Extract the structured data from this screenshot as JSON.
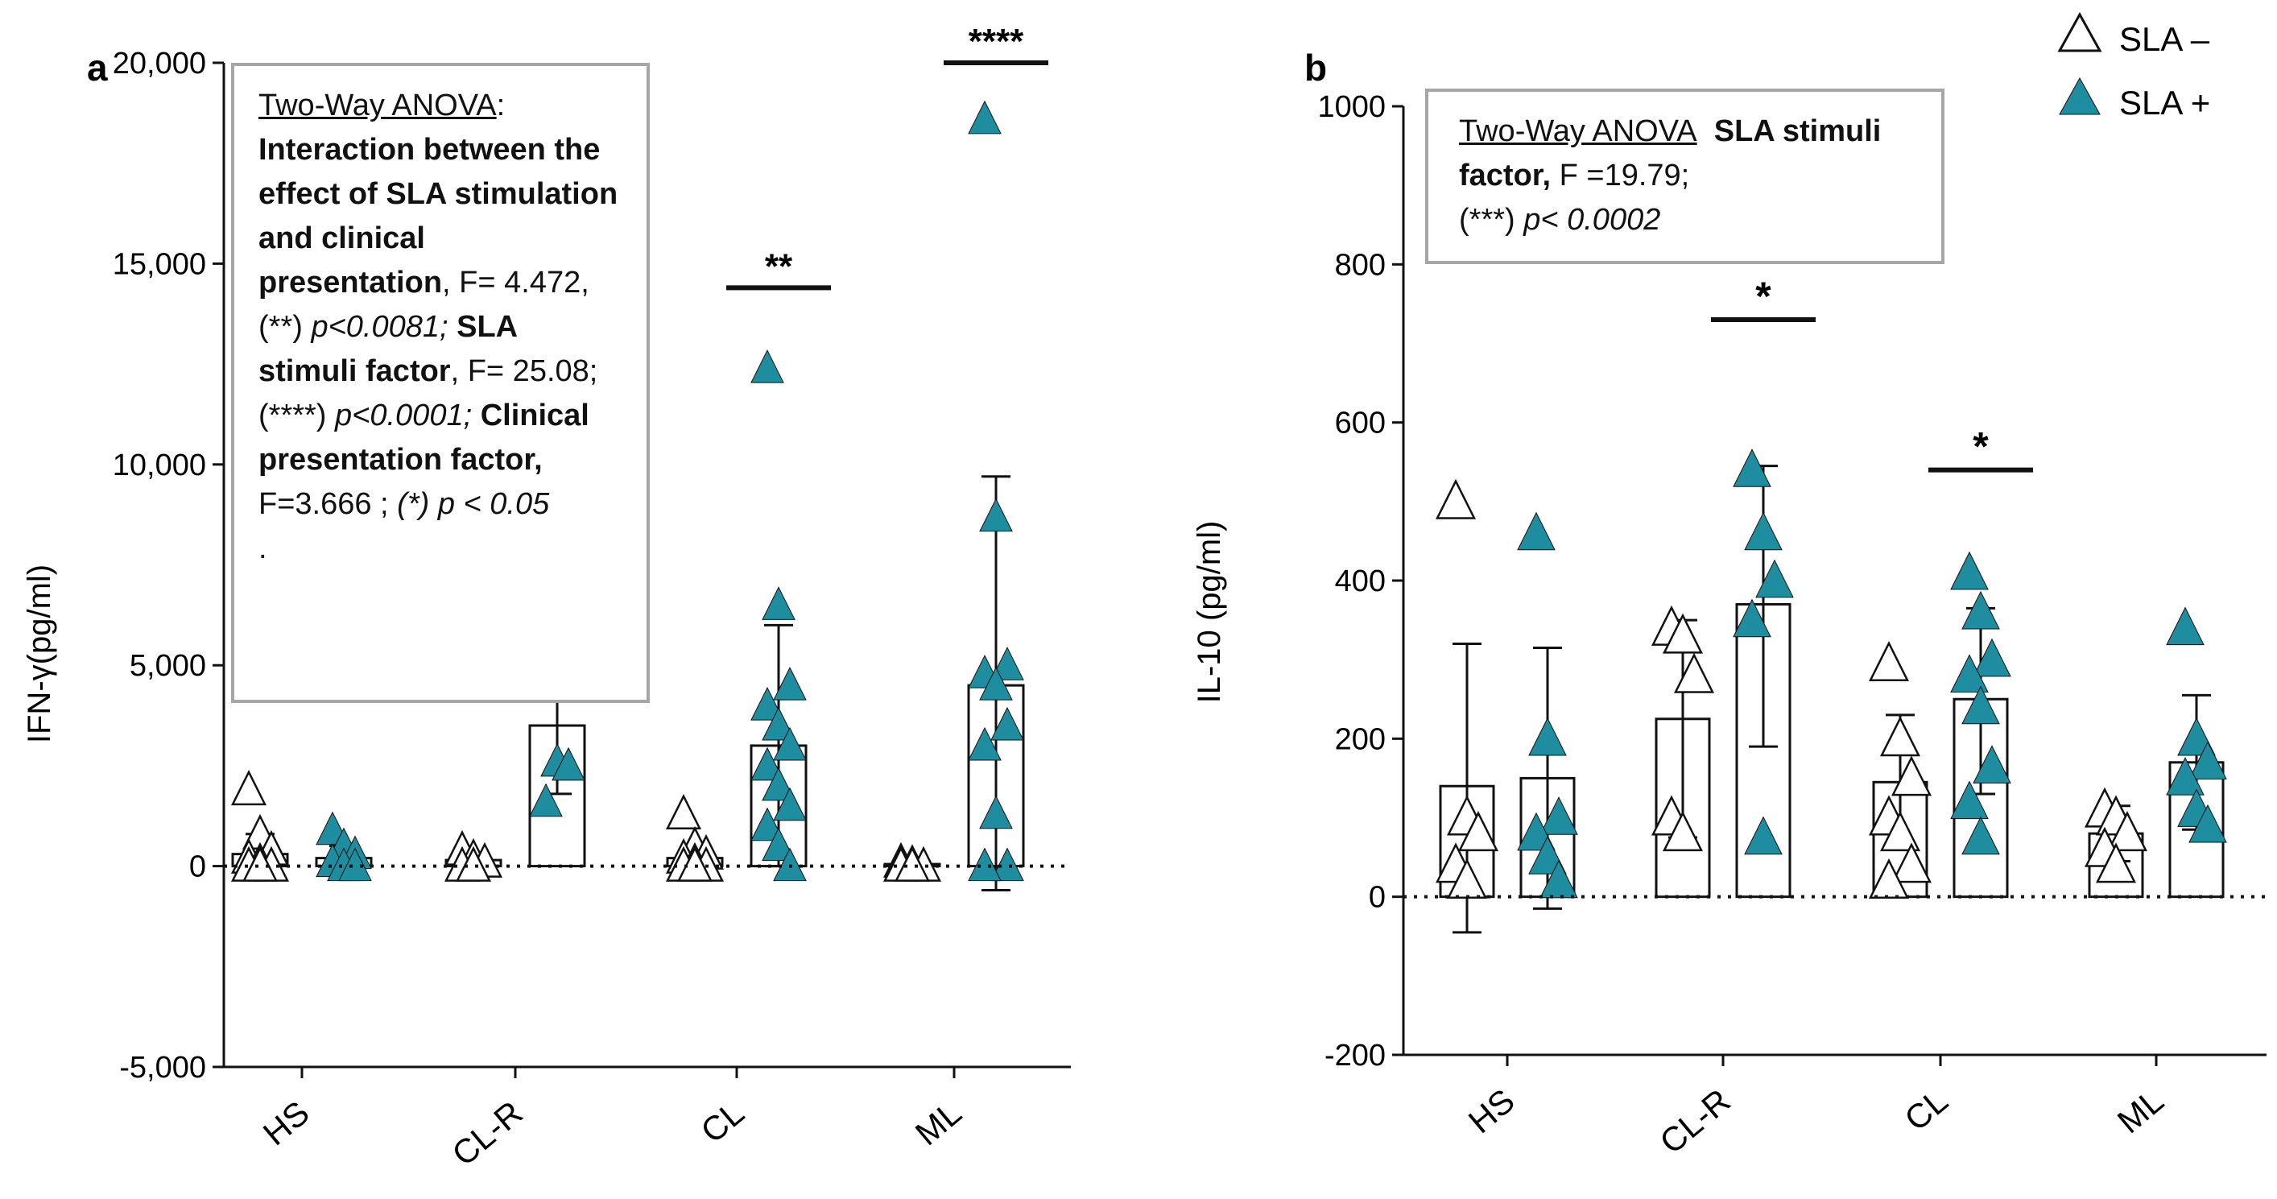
{
  "colors": {
    "sla_minus_fill": "#ffffff",
    "sla_plus_fill": "#1f8da0",
    "bar_stroke": "#111111",
    "box_border": "#a6a6a6"
  },
  "legend": {
    "items": [
      {
        "label": "SLA –",
        "marker": "open-triangle"
      },
      {
        "label": "SLA +",
        "marker": "filled-triangle"
      }
    ],
    "placement": "top-right"
  },
  "chart_data": [
    {
      "type": "bar",
      "panel_label": "a",
      "title": "",
      "xlabel": "",
      "ylabel": "IFN-γ(pg/ml)",
      "ylim": [
        -5000,
        20000
      ],
      "yticks": [
        -5000,
        0,
        5000,
        10000,
        15000,
        20000
      ],
      "ytick_labels": [
        "-5,000",
        "0",
        "5,000",
        "10,000",
        "15,000",
        "20,000"
      ],
      "categories": [
        "HS",
        "CL-R",
        "CL",
        "ML"
      ],
      "baseline": 0,
      "series": [
        {
          "name": "SLA –",
          "means": [
            300,
            150,
            200,
            50
          ],
          "err_low": [
            -200,
            0,
            0,
            0
          ],
          "err_high": [
            800,
            300,
            500,
            100
          ],
          "points": [
            [
              1900,
              800,
              400,
              200,
              100,
              0,
              0,
              0
            ],
            [
              400,
              200,
              100,
              0,
              0
            ],
            [
              1300,
              500,
              300,
              200,
              100,
              0,
              0,
              0
            ],
            [
              100,
              50,
              0,
              0,
              0
            ]
          ]
        },
        {
          "name": "SLA +",
          "means": [
            200,
            3500,
            3000,
            4500
          ],
          "err_low": [
            0,
            1800,
            0,
            -600
          ],
          "err_high": [
            500,
            5200,
            6000,
            9700
          ],
          "points": [
            [
              900,
              500,
              300,
              100,
              0,
              0
            ],
            [
              5200,
              2600,
              2500,
              1600
            ],
            [
              12400,
              6500,
              4500,
              4000,
              3500,
              3000,
              2500,
              2000,
              1500,
              1000,
              500,
              0
            ],
            [
              18600,
              8700,
              5000,
              4800,
              4500,
              3500,
              3000,
              1300,
              0,
              0
            ]
          ]
        }
      ],
      "significance": [
        {
          "category": "CL",
          "label": "**",
          "y": 14400
        },
        {
          "category": "ML",
          "label": "****",
          "y": 20000
        }
      ]
    },
    {
      "type": "bar",
      "panel_label": "b",
      "title": "",
      "xlabel": "",
      "ylabel": "IL-10 (pg/ml)",
      "ylim": [
        -200,
        1000
      ],
      "yticks": [
        -200,
        0,
        200,
        400,
        600,
        800,
        1000
      ],
      "ytick_labels": [
        "-200",
        "0",
        "200",
        "400",
        "600",
        "800",
        "1000"
      ],
      "categories": [
        "HS",
        "CL-R",
        "CL",
        "ML"
      ],
      "baseline": 0,
      "series": [
        {
          "name": "SLA –",
          "means": [
            140,
            225,
            145,
            80
          ],
          "err_low": [
            -45,
            75,
            60,
            45
          ],
          "err_high": [
            320,
            350,
            230,
            115
          ],
          "points": [
            [
              500,
              100,
              80,
              40,
              20
            ],
            [
              340,
              330,
              280,
              100,
              80
            ],
            [
              295,
              200,
              150,
              100,
              80,
              40,
              20
            ],
            [
              110,
              100,
              80,
              60,
              40
            ]
          ]
        },
        {
          "name": "SLA +",
          "means": [
            150,
            370,
            250,
            170
          ],
          "err_low": [
            -15,
            190,
            130,
            85
          ],
          "err_high": [
            315,
            545,
            365,
            255
          ],
          "points": [
            [
              460,
              200,
              100,
              80,
              50,
              20
            ],
            [
              540,
              460,
              400,
              350,
              75
            ],
            [
              410,
              360,
              300,
              280,
              240,
              165,
              120,
              75
            ],
            [
              340,
              200,
              170,
              150,
              110,
              90
            ]
          ]
        }
      ],
      "significance": [
        {
          "category": "CL-R",
          "label": "*",
          "y": 730
        },
        {
          "category": "CL",
          "label": "*",
          "y": 540
        }
      ]
    }
  ],
  "annotation_a": {
    "heading": "Two-Way ANOVA",
    "heading_colon": ":",
    "interaction": "Interaction between the effect of SLA stimulation and clinical presentation",
    "interaction_stat": ", F= 4.472, (**) ",
    "interaction_p": "p<0.0081;",
    "sla_label": "SLA stimuli factor",
    "sla_stat": ", F= 25.08; (****) ",
    "sla_p": "p<0.0001;",
    "clin_label": "Clinical presentation factor,",
    "clin_stat": "F=3.666 ; ",
    "clin_p": "(*) p < 0.05",
    "trailing": "."
  },
  "annotation_b": {
    "heading": "Two-Way ANOVA",
    "sla_label": "SLA stimuli factor,",
    "sla_stat": " F =19.79;",
    "sla_sig": "(***) ",
    "sla_p": "p< 0.0002"
  }
}
